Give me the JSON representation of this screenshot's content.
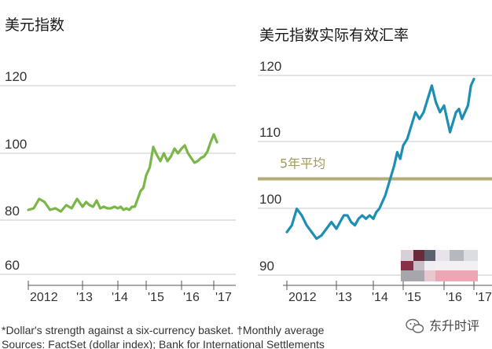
{
  "chart_data": [
    {
      "type": "line",
      "title": "美元指数",
      "x_ticks": [
        "2012",
        "'13",
        "'14",
        "'15",
        "'16",
        "'17"
      ],
      "y_ticks": [
        "120",
        "100",
        "80",
        "60"
      ],
      "ylim": [
        60,
        125
      ],
      "xlim": [
        2012.0,
        2017.3
      ],
      "grid": true,
      "series": [
        {
          "color": "#7ab648",
          "x": [
            2012.0,
            2012.1,
            2012.2,
            2012.3,
            2012.4,
            2012.5,
            2012.6,
            2012.7,
            2012.8,
            2012.9,
            2013.0,
            2013.1,
            2013.2,
            2013.3,
            2013.4,
            2013.5,
            2013.6,
            2013.7,
            2013.8,
            2013.9,
            2014.0,
            2014.1,
            2014.2,
            2014.3,
            2014.4,
            2014.5,
            2014.6,
            2014.7,
            2014.8,
            2014.9,
            2015.0,
            2015.1,
            2015.2,
            2015.3,
            2015.4,
            2015.5,
            2015.6,
            2015.7,
            2015.8,
            2015.9,
            2016.0,
            2016.1,
            2016.2,
            2016.3,
            2016.4,
            2016.5,
            2016.6,
            2016.7,
            2016.8,
            2016.9,
            2017.0,
            2017.1
          ],
          "values": [
            79.5,
            80,
            83,
            82,
            79.5,
            80,
            79,
            81,
            80,
            83,
            80.5,
            82,
            81,
            80.5,
            82.5,
            80,
            80.5,
            80,
            80,
            80.5,
            80,
            80.5,
            79.5,
            80,
            79.5,
            80.5,
            80.5,
            83,
            85.5,
            86.5,
            90.5,
            93,
            99.5,
            97,
            95,
            97.5,
            95,
            96.5,
            99,
            97.5,
            99,
            100,
            97.5,
            96,
            94.5,
            95,
            96,
            96.5,
            98,
            101,
            103.5,
            101
          ]
        }
      ]
    },
    {
      "type": "line",
      "title": "美元指数实际有效汇率",
      "x_ticks": [
        "2012",
        "'13",
        "'14",
        "'15",
        "'16",
        "'17"
      ],
      "y_ticks": [
        "120",
        "110",
        "100",
        "90"
      ],
      "ylim": [
        88,
        123
      ],
      "xlim": [
        2012.0,
        2017.3
      ],
      "grid": true,
      "reference_line": {
        "label": "5年平均",
        "value": 104,
        "color": "#b5ac7a"
      },
      "series": [
        {
          "color": "#1e8fb3",
          "x": [
            2012.0,
            2012.1,
            2012.2,
            2012.3,
            2012.4,
            2012.5,
            2012.6,
            2012.7,
            2012.8,
            2012.9,
            2013.0,
            2013.1,
            2013.2,
            2013.3,
            2013.4,
            2013.5,
            2013.6,
            2013.7,
            2013.8,
            2013.9,
            2014.0,
            2014.1,
            2014.2,
            2014.3,
            2014.4,
            2014.5,
            2014.6,
            2014.7,
            2014.8,
            2014.9,
            2015.0,
            2015.1,
            2015.2,
            2015.3,
            2015.4,
            2015.5,
            2015.6,
            2015.7,
            2015.8,
            2015.9,
            2016.0,
            2016.1,
            2016.2,
            2016.3,
            2016.4,
            2016.5,
            2016.6,
            2016.7,
            2016.8,
            2016.9,
            2017.0
          ],
          "values": [
            96,
            97,
            99.5,
            98.5,
            97,
            96,
            95,
            95.5,
            96.5,
            97.5,
            96.5,
            97.5,
            98.5,
            98.5,
            97.5,
            97,
            98,
            98.5,
            98,
            98.5,
            98,
            99,
            99.5,
            100.5,
            101.5,
            103,
            104.5,
            106,
            108,
            107,
            109,
            110,
            112,
            114,
            113,
            114,
            116,
            118,
            115.5,
            114,
            115,
            113,
            111,
            112.5,
            114,
            114.5,
            113,
            114,
            115,
            118,
            119
          ]
        }
      ]
    }
  ],
  "footnote": {
    "line1": "*Dollar's strength against a six-currency basket.   †Monthly average",
    "line2": "Sources: FactSet (dollar index); Bank for International Settlements"
  },
  "watermark": {
    "text": "东升时评",
    "icon": "wechat-icon"
  }
}
